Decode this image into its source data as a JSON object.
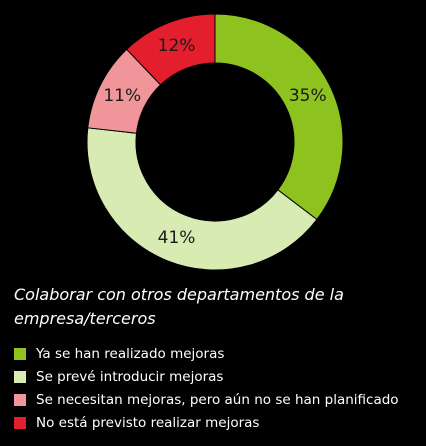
{
  "chart_data": {
    "type": "pie",
    "title": "Colaborar con otros departamentos de la empresa/terceros",
    "categories": [
      "Ya se han realizado mejoras",
      "Se prevé introducir mejoras",
      "Se necesitan mejoras, pero aún no se han planificado",
      "No está previsto realizar mejoras"
    ],
    "values": [
      35,
      41,
      11,
      12
    ],
    "labels": [
      "35%",
      "41%",
      "11%",
      "12%"
    ],
    "colors": [
      "#8dc21f",
      "#d7ebb3",
      "#f0959a",
      "#e31e2d"
    ],
    "style": "donut",
    "legend_position": "bottom"
  }
}
